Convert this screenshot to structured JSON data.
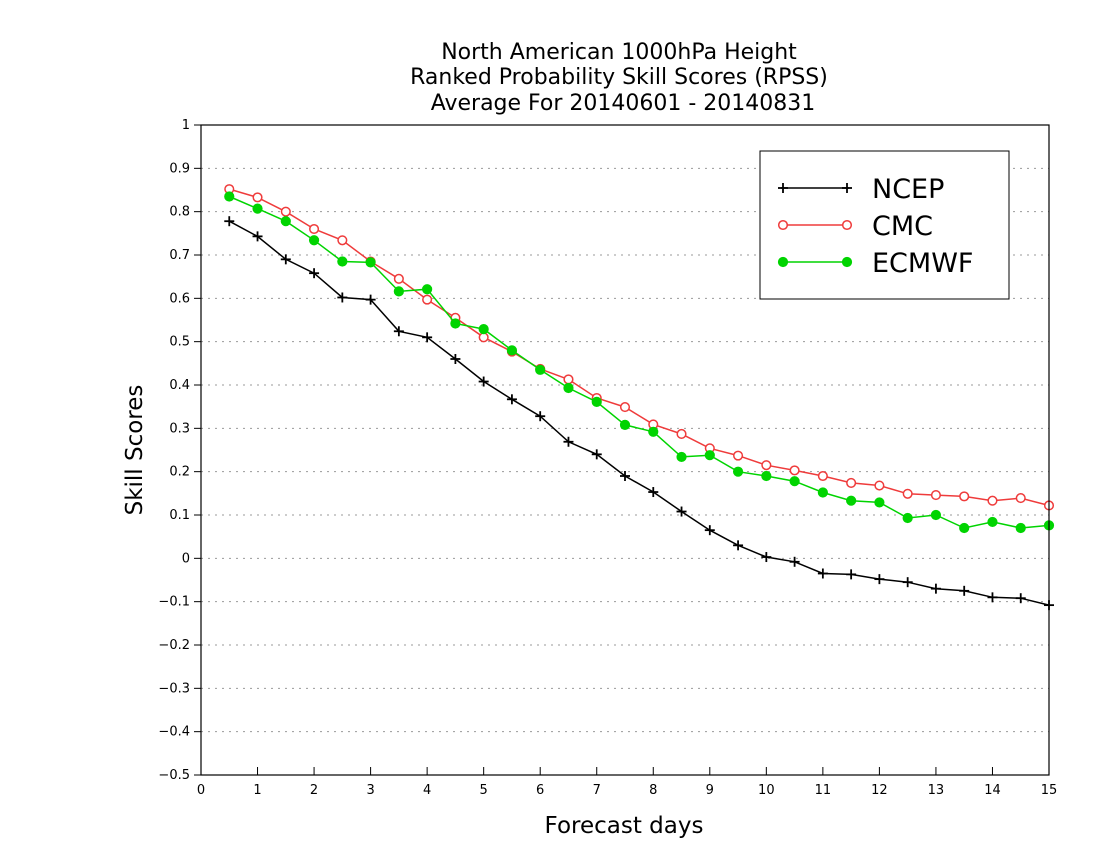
{
  "chart_data": {
    "type": "line",
    "title": [
      "North American 1000hPa Height",
      "Ranked Probability Skill Scores (RPSS)",
      "Average For 20140601 - 20140831"
    ],
    "xlabel": "Forecast days",
    "ylabel": "Skill Scores",
    "xlim": [
      0,
      15
    ],
    "ylim": [
      -0.5,
      1
    ],
    "xticks": [
      "0",
      "1",
      "2",
      "3",
      "4",
      "5",
      "6",
      "7",
      "8",
      "9",
      "10",
      "11",
      "12",
      "13",
      "14",
      "15"
    ],
    "yticks": [
      "−0.5",
      "−0.4",
      "−0.3",
      "−0.2",
      "−0.1",
      "0",
      "0.1",
      "0.2",
      "0.3",
      "0.4",
      "0.5",
      "0.6",
      "0.7",
      "0.8",
      "0.9",
      "1"
    ],
    "grid": "horizontal dotted",
    "legend_position": "top-right",
    "x": [
      0.5,
      1,
      1.5,
      2,
      2.5,
      3,
      3.5,
      4,
      4.5,
      5,
      5.5,
      6,
      6.5,
      7,
      7.5,
      8,
      8.5,
      9,
      9.5,
      10,
      10.5,
      11,
      11.5,
      12,
      12.5,
      13,
      13.5,
      14,
      14.5,
      15
    ],
    "series": [
      {
        "name": "NCEP",
        "color": "#000000",
        "marker": "plus",
        "values": [
          0.778,
          0.743,
          0.69,
          0.658,
          0.602,
          0.597,
          0.524,
          0.51,
          0.46,
          0.408,
          0.367,
          0.328,
          0.269,
          0.24,
          0.19,
          0.153,
          0.108,
          0.065,
          0.03,
          0.003,
          -0.008,
          -0.035,
          -0.037,
          -0.048,
          -0.055,
          -0.07,
          -0.075,
          -0.09,
          -0.092,
          -0.108
        ]
      },
      {
        "name": "CMC",
        "color": "#ef3b3b",
        "marker": "open-circle",
        "values": [
          0.852,
          0.833,
          0.8,
          0.76,
          0.734,
          0.685,
          0.645,
          0.597,
          0.555,
          0.51,
          0.477,
          0.437,
          0.413,
          0.37,
          0.349,
          0.309,
          0.287,
          0.254,
          0.237,
          0.215,
          0.203,
          0.19,
          0.174,
          0.168,
          0.149,
          0.146,
          0.143,
          0.133,
          0.139,
          0.122
        ]
      },
      {
        "name": "ECMWF",
        "color": "#00d400",
        "marker": "filled-circle",
        "values": [
          0.835,
          0.807,
          0.778,
          0.734,
          0.685,
          0.683,
          0.616,
          0.621,
          0.542,
          0.529,
          0.48,
          0.435,
          0.393,
          0.361,
          0.308,
          0.292,
          0.234,
          0.238,
          0.2,
          0.19,
          0.178,
          0.152,
          0.133,
          0.129,
          0.093,
          0.1,
          0.07,
          0.084,
          0.07,
          0.076
        ]
      }
    ]
  }
}
